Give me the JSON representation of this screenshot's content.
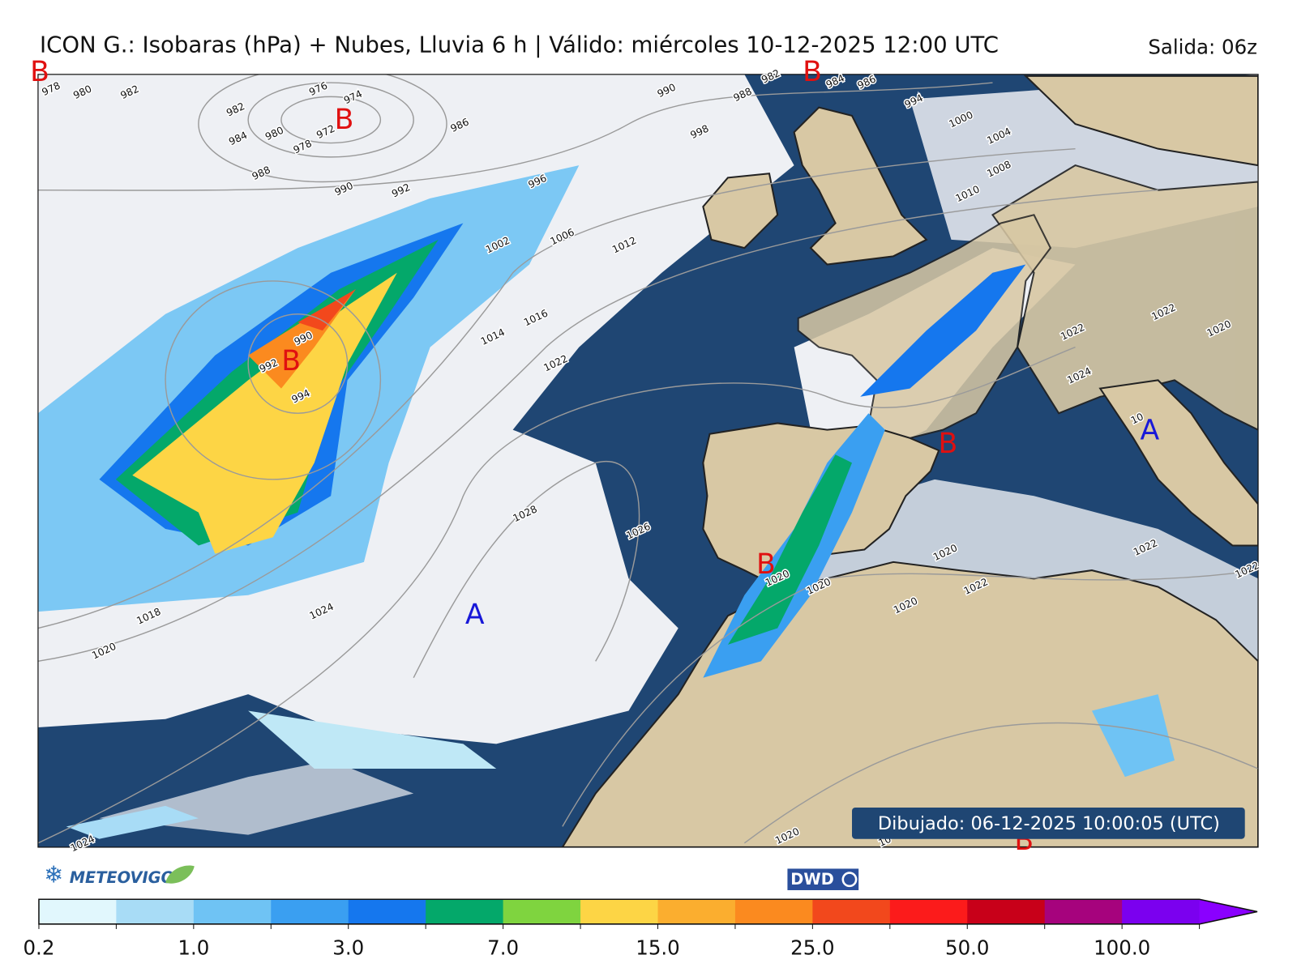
{
  "header": {
    "title": "ICON G.: Isobaras (hPa) + Nubes, Lluvia 6 h | Válido: miércoles 10-12-2025 12:00 UTC",
    "run": "Salida: 06z"
  },
  "map": {
    "low_color": "#e01010",
    "high_color": "#1818d8",
    "pressure_centers": [
      {
        "label": "B",
        "kind": "low"
      },
      {
        "label": "B",
        "kind": "low"
      },
      {
        "label": "B",
        "kind": "low"
      },
      {
        "label": "B",
        "kind": "low"
      },
      {
        "label": "B",
        "kind": "low"
      },
      {
        "label": "B",
        "kind": "low"
      },
      {
        "label": "B",
        "kind": "low"
      },
      {
        "label": "A",
        "kind": "high"
      },
      {
        "label": "A",
        "kind": "high"
      }
    ],
    "isobar_labels": [
      "978",
      "980",
      "982",
      "976",
      "974",
      "982",
      "972",
      "980",
      "978",
      "984",
      "986",
      "988",
      "990",
      "992",
      "996",
      "982",
      "984",
      "986",
      "990",
      "988",
      "994",
      "998",
      "1000",
      "1004",
      "1008",
      "1010",
      "1012",
      "1006",
      "1002",
      "990",
      "992",
      "994",
      "1014",
      "1016",
      "1022",
      "1028",
      "1026",
      "1024",
      "1018",
      "1020",
      "1020",
      "1022",
      "1020",
      "1020",
      "1020",
      "1022",
      "1020",
      "1022",
      "1024",
      "1022",
      "1022",
      "1020",
      "1024",
      "10",
      "10"
    ]
  },
  "stamp": "Dibujado: 06-12-2025 10:00:05 (UTC)",
  "logos": {
    "meteovigo": "METEOVIGO",
    "dwd": "DWD"
  },
  "colorbar": {
    "colors": [
      "#e1f7fd",
      "#a8dcf6",
      "#6fc3f4",
      "#3a9ff1",
      "#1577ee",
      "#04a86a",
      "#7fd43f",
      "#fdd545",
      "#fbae2f",
      "#fb8a1f",
      "#f2481c",
      "#fc1b1b",
      "#c80019",
      "#a6037d",
      "#7b00ef"
    ],
    "extend_color": "#8a00ff",
    "ticks": [
      0.2,
      {
        "value": 1,
        "label": "1.0"
      },
      {
        "value": 3,
        "label": "3.0"
      },
      {
        "value": 7,
        "label": "7.0"
      },
      {
        "value": 15,
        "label": "15.0"
      },
      {
        "value": 25,
        "label": "25.0"
      },
      {
        "value": 50,
        "label": "50.0"
      },
      {
        "value": 100,
        "label": "100.0"
      }
    ]
  }
}
